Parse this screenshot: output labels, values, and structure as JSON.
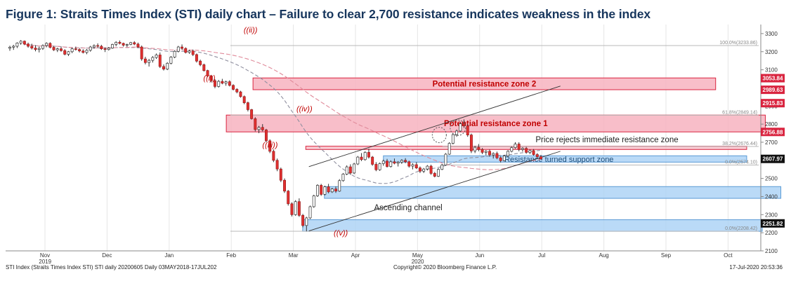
{
  "figure_title": "Figure 1: Straits Times Index (STI) daily chart – Failure to clear 2,700 resistance indicates weakness in the index",
  "footer": {
    "left": "STI Index (Straits Times Index STI) STI daily 20200605  Daily 03MAY2018-17JUL202",
    "center": "Copyright© 2020 Bloomberg Finance L.P.",
    "right": "17-Jul-2020 20:53:36"
  },
  "colors": {
    "up": "#ffffff",
    "down": "#e23030",
    "zone_red": "#f7b3bf",
    "zone_red_border": "#d9243f",
    "zone_blue": "#a9d1f5",
    "zone_blue_border": "#5b9bd5",
    "ma_fast": "#8f8f9f",
    "ma_slow": "#e08a9a",
    "title": "#17365d"
  },
  "chart_data": {
    "type": "candlestick",
    "title": "Straits Times Index (STI) daily chart",
    "y_axis": {
      "min": 2100,
      "max": 3350,
      "position": "right",
      "ticks": [
        2100,
        2200,
        2300,
        2400,
        2500,
        2600,
        2700,
        2800,
        2900,
        3000,
        3100,
        3200,
        3300
      ]
    },
    "x_axis": {
      "months": [
        "Nov",
        "Dec",
        "Jan",
        "Feb",
        "Mar",
        "Apr",
        "May",
        "Jun",
        "Jul",
        "Aug",
        "Sep",
        "Oct"
      ],
      "month_index": [
        0,
        1,
        2,
        3,
        4,
        5,
        6,
        7,
        8,
        9,
        10,
        11
      ],
      "years": [
        {
          "label": "2019",
          "month_index": 0.5
        },
        {
          "label": "2020",
          "month_index": 6.5
        }
      ]
    },
    "price_tags": [
      {
        "value": 3053.84,
        "label": "3053.84",
        "color": "#d9243f"
      },
      {
        "value": 2989.63,
        "label": "2989.63",
        "color": "#d9243f"
      },
      {
        "value": 2915.83,
        "label": "2915.83",
        "color": "#d9243f"
      },
      {
        "value": 2756.88,
        "label": "2756.88",
        "color": "#d9243f"
      },
      {
        "value": 2607.97,
        "label": "2607.97",
        "color": "#111111"
      },
      {
        "value": 2251.82,
        "label": "2251.82",
        "color": "#111111"
      }
    ],
    "fib_levels": [
      {
        "value": 3233.86,
        "label": "100.0%(3233.86)"
      },
      {
        "value": 2849.14,
        "label": "61.8%(2849.14)"
      },
      {
        "value": 2676.44,
        "label": "38.2%(2676.44)"
      },
      {
        "value": 2574.1,
        "label": "0.0%(2574.10)"
      },
      {
        "value": 2208.42,
        "label": "0.0%(2208.42)"
      }
    ],
    "zones": [
      {
        "label": "Potential resistance zone 2",
        "from": 2990,
        "to": 3055,
        "x0": 3.35,
        "x1": 10.8,
        "kind": "red"
      },
      {
        "label": "Potential resistance zone 1",
        "from": 2757,
        "to": 2850,
        "x0": 2.92,
        "x1": 11.6,
        "kind": "red"
      },
      {
        "label": "",
        "from": 2660,
        "to": 2678,
        "x0": 4.2,
        "x1": 11.3,
        "kind": "red_thin"
      },
      {
        "label": "Resistance turned support zone",
        "from": 2590,
        "to": 2625,
        "x0": 5.45,
        "x1": 11.3,
        "kind": "blue"
      },
      {
        "label": "",
        "from": 2390,
        "to": 2455,
        "x0": 4.5,
        "x1": 11.85,
        "kind": "blue"
      },
      {
        "label": "",
        "from": 2208,
        "to": 2272,
        "x0": 4.15,
        "x1": 11.55,
        "kind": "blue"
      }
    ],
    "annotations": [
      {
        "text": "((ii))",
        "x": 3.2,
        "y": 3305,
        "kind": "wave"
      },
      {
        "text": "((i))",
        "x": 2.55,
        "y": 3040,
        "kind": "wave"
      },
      {
        "text": "((iv))",
        "x": 4.05,
        "y": 2870,
        "kind": "wave"
      },
      {
        "text": "((iii))",
        "x": 3.5,
        "y": 2670,
        "kind": "wave"
      },
      {
        "text": "((v))",
        "x": 4.65,
        "y": 2185,
        "kind": "wave"
      },
      {
        "text": "Price rejects immediate resistance zone",
        "x": 7.9,
        "y": 2700,
        "kind": "note"
      },
      {
        "text": "Ascending channel",
        "x": 5.3,
        "y": 2325,
        "kind": "note"
      }
    ],
    "channel": {
      "lower": [
        [
          4.25,
          2210
        ],
        [
          8.3,
          2650
        ]
      ],
      "upper": [
        [
          4.25,
          2565
        ],
        [
          8.3,
          3010
        ]
      ]
    },
    "series": [
      {
        "name": "STI",
        "ohlc": [
          [
            3219,
            3233,
            3205,
            3225
          ],
          [
            3225,
            3238,
            3210,
            3230
          ],
          [
            3230,
            3252,
            3220,
            3248
          ],
          [
            3248,
            3264,
            3238,
            3258
          ],
          [
            3258,
            3262,
            3236,
            3242
          ],
          [
            3242,
            3250,
            3222,
            3230
          ],
          [
            3230,
            3244,
            3212,
            3220
          ],
          [
            3220,
            3236,
            3202,
            3212
          ],
          [
            3212,
            3228,
            3196,
            3218
          ],
          [
            3218,
            3240,
            3210,
            3234
          ],
          [
            3234,
            3252,
            3224,
            3246
          ],
          [
            3246,
            3252,
            3218,
            3224
          ],
          [
            3224,
            3232,
            3204,
            3210
          ],
          [
            3210,
            3222,
            3198,
            3216
          ],
          [
            3216,
            3226,
            3200,
            3206
          ],
          [
            3206,
            3214,
            3180,
            3186
          ],
          [
            3186,
            3204,
            3176,
            3200
          ],
          [
            3200,
            3222,
            3192,
            3216
          ],
          [
            3216,
            3228,
            3206,
            3212
          ],
          [
            3212,
            3220,
            3196,
            3204
          ],
          [
            3204,
            3214,
            3190,
            3196
          ],
          [
            3196,
            3214,
            3186,
            3208
          ],
          [
            3208,
            3232,
            3200,
            3226
          ],
          [
            3226,
            3240,
            3216,
            3234
          ],
          [
            3234,
            3246,
            3222,
            3230
          ],
          [
            3230,
            3238,
            3210,
            3216
          ],
          [
            3216,
            3224,
            3198,
            3212
          ],
          [
            3212,
            3226,
            3206,
            3220
          ],
          [
            3220,
            3244,
            3216,
            3240
          ],
          [
            3240,
            3258,
            3230,
            3252
          ],
          [
            3252,
            3262,
            3240,
            3246
          ],
          [
            3246,
            3250,
            3228,
            3236
          ],
          [
            3236,
            3244,
            3226,
            3240
          ],
          [
            3240,
            3254,
            3236,
            3250
          ],
          [
            3250,
            3258,
            3236,
            3242
          ],
          [
            3242,
            3250,
            3220,
            3226
          ],
          [
            3226,
            3234,
            3150,
            3160
          ],
          [
            3160,
            3172,
            3130,
            3140
          ],
          [
            3140,
            3160,
            3118,
            3152
          ],
          [
            3152,
            3176,
            3140,
            3168
          ],
          [
            3168,
            3190,
            3160,
            3182
          ],
          [
            3182,
            3196,
            3110,
            3118
          ],
          [
            3118,
            3130,
            3096,
            3104
          ],
          [
            3104,
            3142,
            3098,
            3136
          ],
          [
            3136,
            3176,
            3130,
            3170
          ],
          [
            3170,
            3208,
            3164,
            3202
          ],
          [
            3202,
            3232,
            3196,
            3226
          ],
          [
            3226,
            3240,
            3210,
            3218
          ],
          [
            3218,
            3224,
            3190,
            3196
          ],
          [
            3196,
            3210,
            3188,
            3204
          ],
          [
            3204,
            3212,
            3176,
            3184
          ],
          [
            3184,
            3190,
            3140,
            3148
          ],
          [
            3148,
            3156,
            3120,
            3128
          ],
          [
            3128,
            3134,
            3090,
            3096
          ],
          [
            3096,
            3100,
            3060,
            3066
          ],
          [
            3066,
            3072,
            3030,
            3040
          ],
          [
            3040,
            3048,
            2998,
            3008
          ],
          [
            3008,
            3044,
            3002,
            3036
          ],
          [
            3036,
            3050,
            3020,
            3026
          ],
          [
            3026,
            3040,
            3012,
            3034
          ],
          [
            3034,
            3042,
            3008,
            3014
          ],
          [
            3014,
            3020,
            2986,
            2992
          ],
          [
            2992,
            2998,
            2970,
            2978
          ],
          [
            2978,
            2984,
            2946,
            2952
          ],
          [
            2952,
            2958,
            2910,
            2918
          ],
          [
            2918,
            2924,
            2870,
            2880
          ],
          [
            2880,
            2884,
            2825,
            2830
          ],
          [
            2830,
            2838,
            2760,
            2770
          ],
          [
            2770,
            2790,
            2750,
            2782
          ],
          [
            2782,
            2800,
            2760,
            2768
          ],
          [
            2768,
            2774,
            2700,
            2708
          ],
          [
            2708,
            2716,
            2640,
            2650
          ],
          [
            2650,
            2660,
            2590,
            2600
          ],
          [
            2600,
            2610,
            2540,
            2552
          ],
          [
            2552,
            2560,
            2480,
            2490
          ],
          [
            2490,
            2500,
            2420,
            2430
          ],
          [
            2430,
            2436,
            2350,
            2360
          ],
          [
            2360,
            2368,
            2290,
            2300
          ],
          [
            2300,
            2380,
            2294,
            2372
          ],
          [
            2372,
            2390,
            2288,
            2296
          ],
          [
            2296,
            2304,
            2230,
            2240
          ],
          [
            2240,
            2288,
            2208,
            2282
          ],
          [
            2282,
            2350,
            2276,
            2344
          ],
          [
            2344,
            2410,
            2338,
            2404
          ],
          [
            2404,
            2468,
            2398,
            2462
          ],
          [
            2462,
            2470,
            2404,
            2412
          ],
          [
            2412,
            2460,
            2406,
            2454
          ],
          [
            2454,
            2470,
            2418,
            2426
          ],
          [
            2426,
            2448,
            2420,
            2442
          ],
          [
            2442,
            2456,
            2420,
            2430
          ],
          [
            2430,
            2496,
            2426,
            2488
          ],
          [
            2488,
            2530,
            2482,
            2524
          ],
          [
            2524,
            2572,
            2518,
            2564
          ],
          [
            2564,
            2578,
            2520,
            2530
          ],
          [
            2530,
            2586,
            2524,
            2580
          ],
          [
            2580,
            2624,
            2574,
            2618
          ],
          [
            2618,
            2640,
            2596,
            2604
          ],
          [
            2604,
            2650,
            2598,
            2644
          ],
          [
            2644,
            2664,
            2610,
            2618
          ],
          [
            2618,
            2624,
            2570,
            2578
          ],
          [
            2578,
            2590,
            2540,
            2548
          ],
          [
            2548,
            2588,
            2542,
            2582
          ],
          [
            2582,
            2604,
            2570,
            2596
          ],
          [
            2596,
            2608,
            2560,
            2566
          ],
          [
            2566,
            2600,
            2560,
            2592
          ],
          [
            2592,
            2610,
            2578,
            2584
          ],
          [
            2584,
            2596,
            2566,
            2590
          ],
          [
            2590,
            2606,
            2580,
            2600
          ],
          [
            2600,
            2612,
            2584,
            2592
          ],
          [
            2592,
            2598,
            2560,
            2568
          ],
          [
            2568,
            2584,
            2550,
            2576
          ],
          [
            2576,
            2590,
            2552,
            2558
          ],
          [
            2558,
            2566,
            2530,
            2540
          ],
          [
            2540,
            2558,
            2530,
            2552
          ],
          [
            2552,
            2574,
            2544,
            2568
          ],
          [
            2568,
            2576,
            2520,
            2528
          ],
          [
            2528,
            2536,
            2506,
            2512
          ],
          [
            2512,
            2556,
            2508,
            2550
          ],
          [
            2550,
            2580,
            2546,
            2574
          ],
          [
            2574,
            2640,
            2570,
            2634
          ],
          [
            2634,
            2700,
            2630,
            2694
          ],
          [
            2694,
            2750,
            2688,
            2742
          ],
          [
            2742,
            2770,
            2730,
            2762
          ],
          [
            2762,
            2810,
            2756,
            2802
          ],
          [
            2802,
            2826,
            2780,
            2790
          ],
          [
            2790,
            2800,
            2730,
            2740
          ],
          [
            2740,
            2748,
            2640,
            2652
          ],
          [
            2652,
            2680,
            2640,
            2672
          ],
          [
            2672,
            2690,
            2650,
            2660
          ],
          [
            2660,
            2668,
            2634,
            2644
          ],
          [
            2644,
            2656,
            2628,
            2650
          ],
          [
            2650,
            2660,
            2620,
            2630
          ],
          [
            2630,
            2644,
            2610,
            2638
          ],
          [
            2638,
            2648,
            2606,
            2614
          ],
          [
            2614,
            2622,
            2588,
            2598
          ],
          [
            2598,
            2630,
            2594,
            2624
          ],
          [
            2624,
            2656,
            2618,
            2650
          ],
          [
            2650,
            2676,
            2644,
            2670
          ],
          [
            2670,
            2700,
            2664,
            2690
          ],
          [
            2690,
            2700,
            2650,
            2660
          ],
          [
            2660,
            2672,
            2648,
            2666
          ],
          [
            2666,
            2674,
            2636,
            2644
          ],
          [
            2644,
            2660,
            2634,
            2654
          ],
          [
            2654,
            2662,
            2626,
            2632
          ],
          [
            2632,
            2640,
            2612,
            2620
          ],
          [
            2620,
            2630,
            2606,
            2608
          ]
        ]
      }
    ]
  }
}
